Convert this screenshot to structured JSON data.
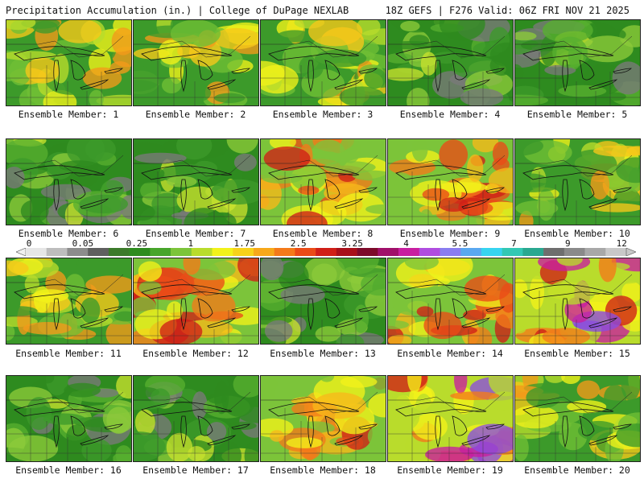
{
  "header": {
    "left_title": "Precipitation Accumulation (in.) | College of DuPage NEXLAB",
    "right_title": "18Z GEFS | F276 Valid: 06Z FRI NOV 21 2025"
  },
  "panel_label_prefix": "Ensemble Member: ",
  "members": [
    {
      "id": 1,
      "label": "Ensemble Member: 1",
      "intensity": "moderate"
    },
    {
      "id": 2,
      "label": "Ensemble Member: 2",
      "intensity": "moderate"
    },
    {
      "id": 3,
      "label": "Ensemble Member: 3",
      "intensity": "moderate"
    },
    {
      "id": 4,
      "label": "Ensemble Member: 4",
      "intensity": "light"
    },
    {
      "id": 5,
      "label": "Ensemble Member: 5",
      "intensity": "light"
    },
    {
      "id": 6,
      "label": "Ensemble Member: 6",
      "intensity": "light"
    },
    {
      "id": 7,
      "label": "Ensemble Member: 7",
      "intensity": "light"
    },
    {
      "id": 8,
      "label": "Ensemble Member: 8",
      "intensity": "heavy"
    },
    {
      "id": 9,
      "label": "Ensemble Member: 9",
      "intensity": "heavy"
    },
    {
      "id": 10,
      "label": "Ensemble Member: 10",
      "intensity": "moderate"
    },
    {
      "id": 11,
      "label": "Ensemble Member: 11",
      "intensity": "moderate"
    },
    {
      "id": 12,
      "label": "Ensemble Member: 12",
      "intensity": "heavy"
    },
    {
      "id": 13,
      "label": "Ensemble Member: 13",
      "intensity": "light"
    },
    {
      "id": 14,
      "label": "Ensemble Member: 14",
      "intensity": "heavy"
    },
    {
      "id": 15,
      "label": "Ensemble Member: 15",
      "intensity": "extreme"
    },
    {
      "id": 16,
      "label": "Ensemble Member: 16",
      "intensity": "light"
    },
    {
      "id": 17,
      "label": "Ensemble Member: 17",
      "intensity": "light"
    },
    {
      "id": 18,
      "label": "Ensemble Member: 18",
      "intensity": "heavy"
    },
    {
      "id": 19,
      "label": "Ensemble Member: 19",
      "intensity": "extreme"
    },
    {
      "id": 20,
      "label": "Ensemble Member: 20",
      "intensity": "moderate"
    }
  ],
  "colorbar": {
    "tick_labels": [
      "0",
      "0.05",
      "0.25",
      "1",
      "1.75",
      "2.5",
      "3.25",
      "4",
      "5.5",
      "7",
      "9",
      "12"
    ],
    "colors": [
      "#e6e6e6",
      "#bdbdbd",
      "#8c8c8c",
      "#5f5f5f",
      "#3c7a2b",
      "#2e8b1f",
      "#47a52b",
      "#7cc43a",
      "#b9dc2c",
      "#f2f21a",
      "#f7d21a",
      "#f7a81a",
      "#f47a1a",
      "#ea4b17",
      "#d01f17",
      "#a8101a",
      "#7d0a2a",
      "#a0106a",
      "#c81ea0",
      "#b04de0",
      "#8a7df0",
      "#5aa8f0",
      "#37d4f0",
      "#33c8b4",
      "#2aa890",
      "#6e6e6e",
      "#8a8a8a",
      "#a8a8a8",
      "#c8c8c8"
    ]
  }
}
